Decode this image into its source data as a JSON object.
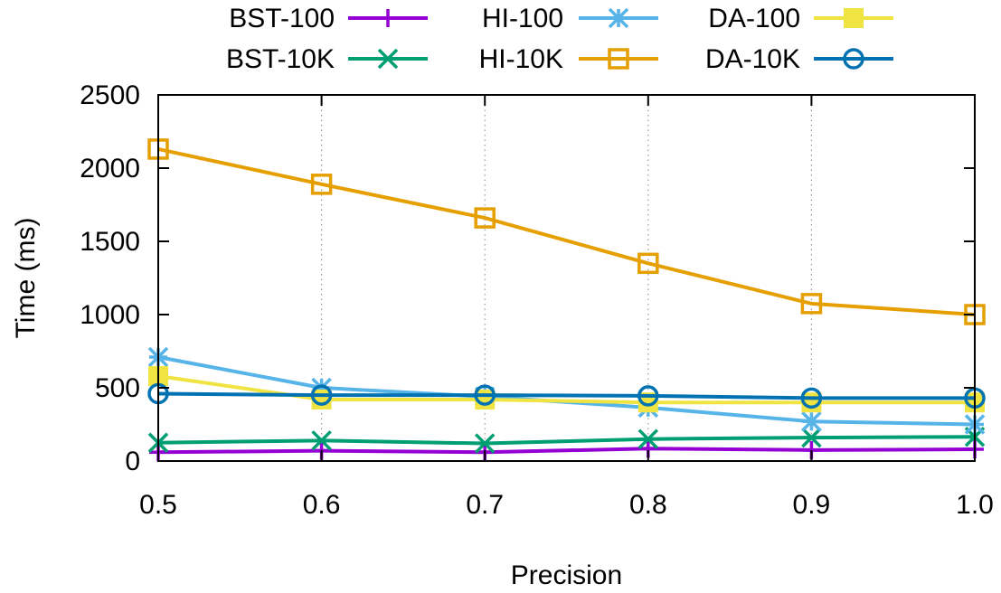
{
  "chart_data": {
    "type": "line",
    "xlabel": "Precision",
    "ylabel": "Time (ms)",
    "x": [
      0.5,
      0.6,
      0.7,
      0.8,
      0.9,
      1.0
    ],
    "x_tick_labels": [
      "0.5",
      "0.6",
      "0.7",
      "0.8",
      "0.9",
      "1.0"
    ],
    "xlim": [
      0.5,
      1.0
    ],
    "ylim": [
      0,
      2500
    ],
    "y_ticks": [
      0,
      500,
      1000,
      1500,
      2000,
      2500
    ],
    "y_tick_labels": [
      "0",
      "500",
      "1000",
      "1500",
      "2000",
      "2500"
    ],
    "grid": "vertical dotted",
    "legend_placement": "top",
    "series": [
      {
        "name": "BST-100",
        "color": "#9400d3",
        "marker": "plus",
        "values": [
          60,
          70,
          60,
          85,
          75,
          80
        ]
      },
      {
        "name": "BST-10K",
        "color": "#009e73",
        "marker": "cross",
        "values": [
          125,
          140,
          120,
          150,
          160,
          165
        ]
      },
      {
        "name": "HI-100",
        "color": "#56b4e9",
        "marker": "star",
        "values": [
          710,
          500,
          440,
          365,
          270,
          250
        ]
      },
      {
        "name": "HI-10K",
        "color": "#e69f00",
        "marker": "open-square",
        "values": [
          2130,
          1890,
          1660,
          1350,
          1075,
          1000
        ]
      },
      {
        "name": "DA-100",
        "color": "#f0e442",
        "marker": "filled-square",
        "values": [
          580,
          420,
          420,
          400,
          400,
          400
        ]
      },
      {
        "name": "DA-10K",
        "color": "#0072b2",
        "marker": "open-circle",
        "values": [
          460,
          450,
          450,
          445,
          430,
          430
        ]
      }
    ]
  }
}
